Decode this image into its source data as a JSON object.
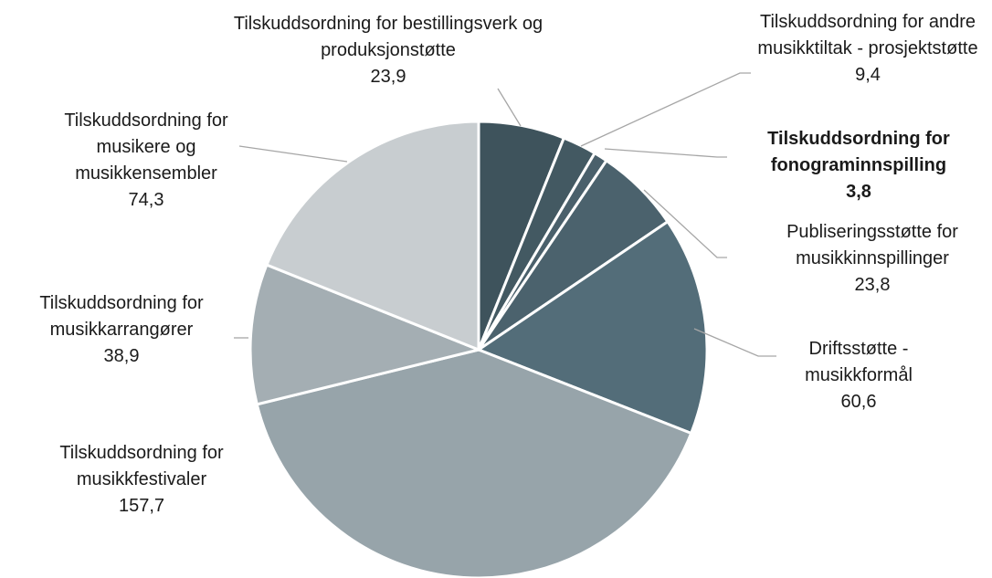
{
  "chart_data": {
    "type": "pie",
    "categories": [
      "Tilskuddsordning for bestillingsverk og produksjonstøtte",
      "Tilskuddsordning for andre musikktiltak - prosjektstøtte",
      "Tilskuddsordning for fonograminnspilling",
      "Publiseringsstøtte for musikkinnspillinger",
      "Driftsstøtte - musikkformål",
      "Tilskuddsordning for musikkfestivaler",
      "Tilskuddsordning for musikkarrangører",
      "Tilskuddsordning for musikere og musikkensembler"
    ],
    "values": [
      23.9,
      9.4,
      3.8,
      23.8,
      60.6,
      157.7,
      38.9,
      74.3
    ],
    "value_labels": [
      "23,9",
      "9,4",
      "3,8",
      "23,8",
      "60,6",
      "157,7",
      "38,9",
      "74,3"
    ],
    "colors": [
      "#3e535c",
      "#435962",
      "#4a606b",
      "#4b626d",
      "#536d79",
      "#97a4aa",
      "#a4aeb3",
      "#c8cdd0"
    ],
    "bold": [
      false,
      false,
      true,
      false,
      false,
      false,
      false,
      false
    ]
  }
}
